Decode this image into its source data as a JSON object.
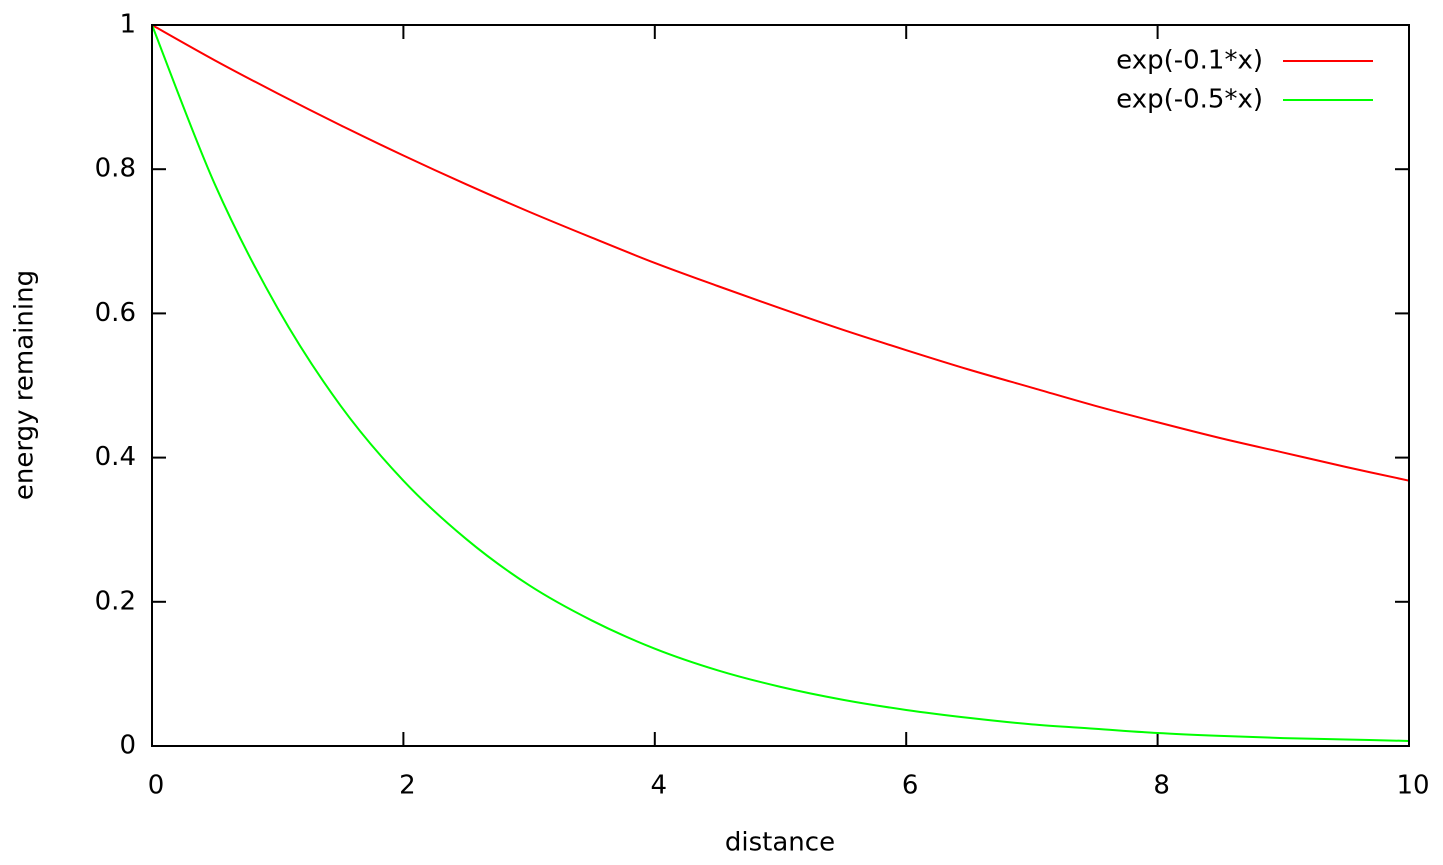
{
  "chart_data": {
    "type": "line",
    "xlabel": "distance",
    "ylabel": "energy remaining",
    "x": [
      0,
      0.5,
      1,
      1.5,
      2,
      2.5,
      3,
      3.5,
      4,
      4.5,
      5,
      5.5,
      6,
      6.5,
      7,
      7.5,
      8,
      8.5,
      9,
      9.5,
      10
    ],
    "series": [
      {
        "name": "exp(-0.1*x)",
        "color": "#ff0000",
        "values": [
          1,
          0.951,
          0.905,
          0.861,
          0.819,
          0.779,
          0.741,
          0.705,
          0.67,
          0.638,
          0.607,
          0.577,
          0.549,
          0.522,
          0.497,
          0.472,
          0.449,
          0.427,
          0.407,
          0.387,
          0.368
        ]
      },
      {
        "name": "exp(-0.5*x)",
        "color": "#00ff00",
        "values": [
          1,
          0.779,
          0.607,
          0.472,
          0.368,
          0.287,
          0.223,
          0.174,
          0.135,
          0.105,
          0.082,
          0.064,
          0.05,
          0.039,
          0.03,
          0.024,
          0.018,
          0.014,
          0.011,
          0.009,
          0.007
        ]
      }
    ],
    "xlim": [
      0,
      10
    ],
    "xticks": [
      0,
      2,
      4,
      6,
      8,
      10
    ],
    "ylim": [
      0,
      1
    ],
    "yticks": [
      0,
      0.2,
      0.4,
      0.6,
      0.8,
      1
    ],
    "legend": "top-right"
  }
}
